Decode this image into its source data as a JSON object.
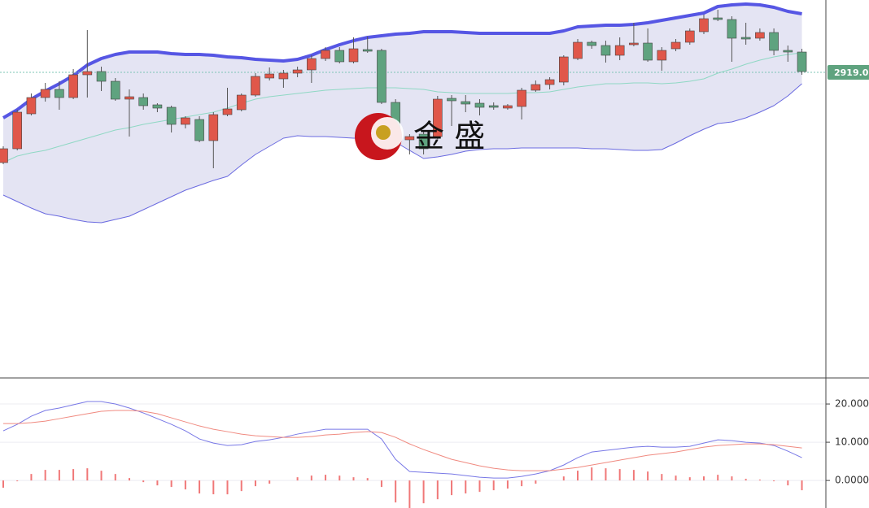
{
  "watermark": "金 盛",
  "chart_data": [
    {
      "type": "candlestick",
      "ylim": [
        2543,
        3008
      ],
      "current_price": 2919.01,
      "up_color": "#e0574a",
      "down_color": "#5fa37f",
      "open": [
        2808,
        2825,
        2868,
        2888,
        2898,
        2888,
        2916,
        2920,
        2908,
        2886,
        2888,
        2879,
        2876,
        2855,
        2861,
        2835,
        2867,
        2873,
        2891,
        2912,
        2911,
        2918,
        2922,
        2936,
        2946,
        2932,
        2947,
        2946,
        2882,
        2836,
        2843,
        2840,
        2887,
        2883,
        2881,
        2878,
        2875,
        2877,
        2897,
        2904,
        2907,
        2936,
        2956,
        2952,
        2940,
        2953,
        2955,
        2934,
        2948,
        2956,
        2969,
        2986,
        2984,
        2962,
        2961,
        2968,
        2946,
        2944
      ],
      "high": [
        2828,
        2873,
        2893,
        2906,
        2908,
        2923,
        2971,
        2926,
        2912,
        2898,
        2893,
        2881,
        2878,
        2865,
        2865,
        2870,
        2900,
        2893,
        2918,
        2925,
        2922,
        2926,
        2940,
        2950,
        2950,
        2962,
        2963,
        2948,
        2886,
        2843,
        2848,
        2890,
        2891,
        2891,
        2886,
        2882,
        2880,
        2900,
        2909,
        2913,
        2940,
        2960,
        2958,
        2958,
        2962,
        2980,
        2973,
        2950,
        2960,
        2973,
        2990,
        2996,
        2988,
        2980,
        2973,
        2973,
        2952,
        2948
      ],
      "low": [
        2806,
        2823,
        2866,
        2883,
        2873,
        2886,
        2888,
        2896,
        2884,
        2840,
        2873,
        2870,
        2845,
        2850,
        2833,
        2801,
        2865,
        2871,
        2889,
        2909,
        2900,
        2913,
        2906,
        2933,
        2930,
        2930,
        2943,
        2880,
        2830,
        2818,
        2818,
        2836,
        2853,
        2870,
        2866,
        2873,
        2873,
        2861,
        2895,
        2898,
        2903,
        2934,
        2948,
        2931,
        2934,
        2951,
        2932,
        2921,
        2945,
        2953,
        2966,
        2982,
        2932,
        2953,
        2958,
        2940,
        2932,
        2916
      ],
      "close": [
        2825,
        2870,
        2888,
        2898,
        2888,
        2916,
        2920,
        2908,
        2886,
        2889,
        2878,
        2875,
        2855,
        2863,
        2835,
        2867,
        2874,
        2891,
        2914,
        2917,
        2918,
        2922,
        2936,
        2946,
        2932,
        2948,
        2945,
        2882,
        2840,
        2840,
        2825,
        2886,
        2884,
        2880,
        2876,
        2876,
        2878,
        2897,
        2904,
        2910,
        2938,
        2956,
        2952,
        2940,
        2952,
        2955,
        2934,
        2946,
        2956,
        2970,
        2985,
        2984,
        2961,
        2960,
        2968,
        2946,
        2944,
        2920
      ],
      "bands": {
        "fill": "rgba(196,196,228,0.45)",
        "upper": {
          "color": "#5656e4",
          "values": [
            2863,
            2873,
            2886,
            2896,
            2905,
            2915,
            2928,
            2936,
            2941,
            2944,
            2944,
            2944,
            2942,
            2941,
            2941,
            2940,
            2938,
            2937,
            2935,
            2934,
            2933,
            2935,
            2940,
            2947,
            2953,
            2958,
            2962,
            2964,
            2966,
            2967,
            2969,
            2969,
            2969,
            2968,
            2967,
            2967,
            2967,
            2967,
            2967,
            2967,
            2970,
            2975,
            2976,
            2977,
            2977,
            2978,
            2980,
            2983,
            2986,
            2989,
            2992,
            3000,
            3002,
            3003,
            3002,
            2999,
            2994,
            2991
          ]
        },
        "middle": {
          "color": "#8fd8c4",
          "values": [
            2808,
            2816,
            2820,
            2823,
            2828,
            2833,
            2838,
            2843,
            2848,
            2851,
            2855,
            2858,
            2861,
            2864,
            2867,
            2870,
            2875,
            2881,
            2886,
            2889,
            2891,
            2893,
            2895,
            2897,
            2898,
            2899,
            2900,
            2900,
            2900,
            2899,
            2898,
            2895,
            2894,
            2893,
            2893,
            2893,
            2893,
            2894,
            2894,
            2895,
            2898,
            2901,
            2903,
            2905,
            2905,
            2906,
            2906,
            2905,
            2906,
            2908,
            2911,
            2918,
            2923,
            2929,
            2934,
            2938,
            2941,
            2943
          ]
        },
        "lower": {
          "color": "#6a6ae0",
          "values": [
            2768,
            2760,
            2752,
            2745,
            2742,
            2738,
            2735,
            2734,
            2738,
            2742,
            2750,
            2758,
            2766,
            2774,
            2780,
            2786,
            2791,
            2805,
            2818,
            2828,
            2838,
            2841,
            2840,
            2840,
            2839,
            2838,
            2838,
            2838,
            2833,
            2823,
            2813,
            2815,
            2818,
            2822,
            2824,
            2825,
            2825,
            2826,
            2826,
            2826,
            2826,
            2826,
            2825,
            2825,
            2824,
            2823,
            2823,
            2824,
            2832,
            2841,
            2849,
            2856,
            2858,
            2863,
            2870,
            2878,
            2890,
            2905
          ]
        }
      }
    },
    {
      "type": "macd",
      "ylim": [
        -7.2,
        26.6
      ],
      "yticks": [
        {
          "value": 20,
          "label": "20.0000"
        },
        {
          "value": 10,
          "label": "10.0000"
        },
        {
          "value": 0,
          "label": "0.0000"
        }
      ],
      "grid": true,
      "lines": [
        {
          "color": "#7878e6",
          "values": [
            12.98,
            14.68,
            16.81,
            18.3,
            18.94,
            19.79,
            20.64,
            20.64,
            20.0,
            18.94,
            17.66,
            16.17,
            14.68,
            12.98,
            10.85,
            9.79,
            9.15,
            9.36,
            10.21,
            10.64,
            11.28,
            12.13,
            12.77,
            13.4,
            13.4,
            13.4,
            13.4,
            10.85,
            5.53,
            2.34,
            2.13,
            1.91,
            1.7,
            1.28,
            0.85,
            0.64,
            0.64,
            1.06,
            1.7,
            2.55,
            4.04,
            5.96,
            7.45,
            7.87,
            8.3,
            8.72,
            8.94,
            8.72,
            8.72,
            8.94,
            9.79,
            10.64,
            10.43,
            10.0,
            9.79,
            9.15,
            7.66,
            5.96
          ]
        },
        {
          "color": "#f08a80",
          "values": [
            14.89,
            14.89,
            15.11,
            15.53,
            16.17,
            16.81,
            17.45,
            18.09,
            18.3,
            18.3,
            18.09,
            17.45,
            16.38,
            15.32,
            14.26,
            13.4,
            12.77,
            12.13,
            11.7,
            11.49,
            11.28,
            11.28,
            11.49,
            11.91,
            12.13,
            12.55,
            12.77,
            12.55,
            11.28,
            9.57,
            8.09,
            6.81,
            5.53,
            4.68,
            3.83,
            3.19,
            2.77,
            2.55,
            2.55,
            2.55,
            2.98,
            3.4,
            4.04,
            4.68,
            5.32,
            5.96,
            6.6,
            7.02,
            7.45,
            8.09,
            8.72,
            9.15,
            9.36,
            9.57,
            9.57,
            9.36,
            8.94,
            8.51
          ]
        }
      ],
      "histogram": {
        "color": "#f07878",
        "values": [
          -1.91,
          -0.21,
          1.7,
          2.77,
          2.77,
          2.98,
          3.19,
          2.55,
          1.7,
          0.64,
          -0.43,
          -1.28,
          -1.7,
          -2.34,
          -3.41,
          -3.61,
          -3.62,
          -2.77,
          -1.49,
          -0.85,
          0.0,
          0.85,
          1.28,
          1.49,
          1.27,
          0.85,
          0.63,
          -1.7,
          -5.75,
          -7.23,
          -5.96,
          -4.9,
          -3.83,
          -3.4,
          -2.98,
          -2.55,
          -2.13,
          -1.49,
          -0.85,
          0.0,
          1.06,
          2.56,
          3.41,
          3.19,
          2.98,
          2.76,
          2.34,
          1.7,
          1.27,
          0.85,
          1.07,
          1.49,
          1.07,
          0.43,
          0.22,
          -0.21,
          -1.28,
          -2.55
        ]
      }
    }
  ]
}
